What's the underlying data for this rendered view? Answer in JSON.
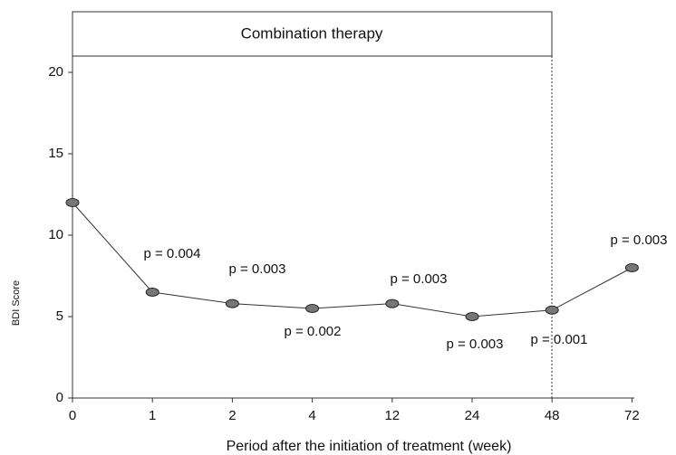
{
  "chart_data": {
    "type": "line",
    "box_label": "Combination therapy",
    "x_label": "Period after the initiation of treatment (week)",
    "y_label": "BDI Score",
    "categories": [
      "0",
      "1",
      "2",
      "4",
      "12",
      "24",
      "48",
      "72"
    ],
    "values": [
      12.0,
      6.5,
      5.8,
      5.5,
      5.8,
      5.0,
      5.4,
      8.0
    ],
    "color": "#333333",
    "ylim": [
      0,
      20
    ],
    "yticks": [
      0,
      5,
      10,
      15,
      20
    ],
    "annotations": [
      "p = 0.004",
      "p = 0.003",
      "p = 0.002",
      "p = 0.003",
      "p = 0.003",
      "p = 0.001",
      "p = 0.003"
    ]
  }
}
